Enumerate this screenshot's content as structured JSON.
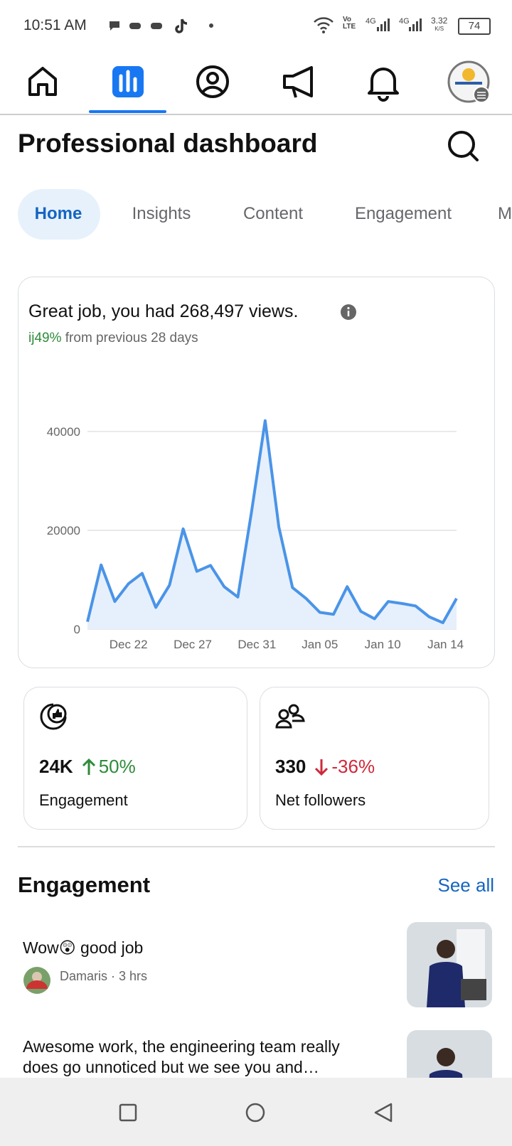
{
  "status_bar": {
    "time": "10:51 AM",
    "volte": "Vo LTE",
    "network": [
      "4G",
      "4G"
    ],
    "speed": "3.32",
    "speed_unit": "K/S",
    "battery": "74"
  },
  "header": {
    "title": "Professional dashboard"
  },
  "tabs": [
    "Home",
    "Insights",
    "Content",
    "Engagement",
    "M"
  ],
  "summary": {
    "headline": "Great job, you had 268,497 views.",
    "change": "ij49%",
    "change_note": "from previous 28 days"
  },
  "chart_data": {
    "type": "area",
    "color": "#4a94e8",
    "fill_color": "#e6f0fc",
    "x": [
      0,
      1,
      2,
      3,
      4,
      5,
      6,
      7,
      8,
      9,
      10,
      11,
      12,
      13,
      14,
      15,
      16,
      17,
      18,
      19,
      20,
      21,
      22,
      23,
      24,
      25,
      26,
      27
    ],
    "values": [
      1500,
      13000,
      5600,
      9200,
      11300,
      4400,
      8900,
      20300,
      11700,
      12900,
      8600,
      6500,
      23700,
      42200,
      20700,
      8400,
      6200,
      3400,
      3000,
      8600,
      3600,
      2100,
      5600,
      5200,
      4700,
      2500,
      1300,
      6200
    ],
    "xlim": [
      0,
      27
    ],
    "ylim": [
      0,
      45000
    ],
    "xticks": [
      {
        "value": 3,
        "label": "Dec 22"
      },
      {
        "value": 7.7,
        "label": "Dec 27"
      },
      {
        "value": 12.4,
        "label": "Dec 31"
      },
      {
        "value": 17,
        "label": "Jan 05"
      },
      {
        "value": 21.6,
        "label": "Jan 10"
      },
      {
        "value": 26.2,
        "label": "Jan 14"
      }
    ],
    "yticks": [
      0,
      20000,
      40000
    ],
    "grid": true
  },
  "stats": [
    {
      "value": "24K",
      "change": "50%",
      "label": "Engagement"
    },
    {
      "value": "330",
      "change": "-36%",
      "label": "Net followers"
    }
  ],
  "engagement": {
    "title": "Engagement",
    "see_all": "See all",
    "items": [
      {
        "text": "Wow😲 good job",
        "author": "Damaris · 3 hrs"
      },
      {
        "text": "Awesome work, the engineering team really does go unnoticed but we see you and…"
      }
    ]
  }
}
